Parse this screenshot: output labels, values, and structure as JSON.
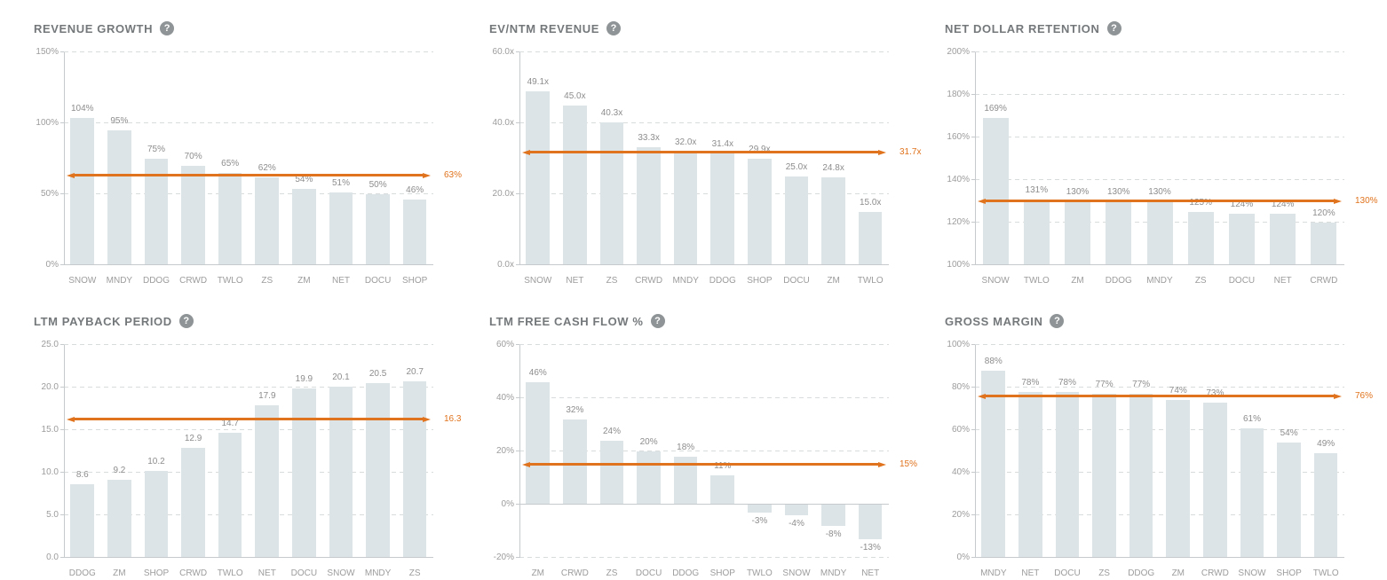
{
  "ui": {
    "help_glyph": "?",
    "colors": {
      "bar": "#dde4e8",
      "avg_line": "#e0731d",
      "title": "#74787a",
      "tick_label": "#9c9c9c",
      "bar_label": "#8d8d8d",
      "grid": "#d9dcdd",
      "axis": "#c6cacc",
      "help_bg": "#8f9496"
    }
  },
  "chart_data": [
    {
      "type": "bar",
      "title": "REVENUE GROWTH",
      "categories": [
        "SNOW",
        "MNDY",
        "DDOG",
        "CRWD",
        "TWLO",
        "ZS",
        "ZM",
        "NET",
        "DOCU",
        "SHOP"
      ],
      "values": [
        104,
        95,
        75,
        70,
        65,
        62,
        54,
        51,
        50,
        46
      ],
      "value_labels": [
        "104%",
        "95%",
        "75%",
        "70%",
        "65%",
        "62%",
        "54%",
        "51%",
        "50%",
        "46%"
      ],
      "average_line": {
        "value": 63,
        "label": "63%"
      },
      "ylim": [
        0,
        150
      ],
      "yticks": [
        {
          "value": 0,
          "label": "0%"
        },
        {
          "value": 50,
          "label": "50%"
        },
        {
          "value": 100,
          "label": "100%"
        },
        {
          "value": 150,
          "label": "150%"
        }
      ],
      "grid": "dashed-horizontal",
      "legend": "none"
    },
    {
      "type": "bar",
      "title": "EV/NTM REVENUE",
      "categories": [
        "SNOW",
        "NET",
        "ZS",
        "CRWD",
        "MNDY",
        "DDOG",
        "SHOP",
        "DOCU",
        "ZM",
        "TWLO"
      ],
      "values": [
        49.1,
        45.0,
        40.3,
        33.3,
        32.0,
        31.4,
        29.9,
        25.0,
        24.8,
        15.0
      ],
      "value_labels": [
        "49.1x",
        "45.0x",
        "40.3x",
        "33.3x",
        "32.0x",
        "31.4x",
        "29.9x",
        "25.0x",
        "24.8x",
        "15.0x"
      ],
      "average_line": {
        "value": 31.7,
        "label": "31.7x"
      },
      "ylim": [
        0,
        60
      ],
      "yticks": [
        {
          "value": 0,
          "label": "0.0x"
        },
        {
          "value": 20,
          "label": "20.0x"
        },
        {
          "value": 40,
          "label": "40.0x"
        },
        {
          "value": 60,
          "label": "60.0x"
        }
      ],
      "grid": "dashed-horizontal",
      "legend": "none"
    },
    {
      "type": "bar",
      "title": "NET DOLLAR RETENTION",
      "categories": [
        "SNOW",
        "TWLO",
        "ZM",
        "DDOG",
        "MNDY",
        "ZS",
        "DOCU",
        "NET",
        "CRWD"
      ],
      "values": [
        169,
        131,
        130,
        130,
        130,
        125,
        124,
        124,
        120
      ],
      "value_labels": [
        "169%",
        "131%",
        "130%",
        "130%",
        "130%",
        "125%",
        "124%",
        "124%",
        "120%"
      ],
      "average_line": {
        "value": 130,
        "label": "130%"
      },
      "ylim": [
        100,
        200
      ],
      "yticks": [
        {
          "value": 100,
          "label": "100%"
        },
        {
          "value": 120,
          "label": "120%"
        },
        {
          "value": 140,
          "label": "140%"
        },
        {
          "value": 160,
          "label": "160%"
        },
        {
          "value": 180,
          "label": "180%"
        },
        {
          "value": 200,
          "label": "200%"
        }
      ],
      "grid": "dashed-horizontal",
      "legend": "none"
    },
    {
      "type": "bar",
      "title": "LTM PAYBACK PERIOD",
      "categories": [
        "DDOG",
        "ZM",
        "SHOP",
        "CRWD",
        "TWLO",
        "NET",
        "DOCU",
        "SNOW",
        "MNDY",
        "ZS"
      ],
      "values": [
        8.6,
        9.2,
        10.2,
        12.9,
        14.7,
        17.9,
        19.9,
        20.1,
        20.5,
        20.7
      ],
      "value_labels": [
        "8.6",
        "9.2",
        "10.2",
        "12.9",
        "14.7",
        "17.9",
        "19.9",
        "20.1",
        "20.5",
        "20.7"
      ],
      "average_line": {
        "value": 16.3,
        "label": "16.3"
      },
      "ylim": [
        0,
        25
      ],
      "yticks": [
        {
          "value": 0,
          "label": "0.0"
        },
        {
          "value": 5,
          "label": "5.0"
        },
        {
          "value": 10,
          "label": "10.0"
        },
        {
          "value": 15,
          "label": "15.0"
        },
        {
          "value": 20,
          "label": "20.0"
        },
        {
          "value": 25,
          "label": "25.0"
        }
      ],
      "grid": "dashed-horizontal",
      "legend": "none"
    },
    {
      "type": "bar",
      "title": "LTM FREE CASH FLOW %",
      "categories": [
        "ZM",
        "CRWD",
        "ZS",
        "DOCU",
        "DDOG",
        "SHOP",
        "TWLO",
        "SNOW",
        "MNDY",
        "NET"
      ],
      "values": [
        46,
        32,
        24,
        20,
        18,
        11,
        -3,
        -4,
        -8,
        -13
      ],
      "value_labels": [
        "46%",
        "32%",
        "24%",
        "20%",
        "18%",
        "11%",
        "-3%",
        "-4%",
        "-8%",
        "-13%"
      ],
      "average_line": {
        "value": 15,
        "label": "15%"
      },
      "ylim": [
        -20,
        60
      ],
      "yticks": [
        {
          "value": -20,
          "label": "-20%"
        },
        {
          "value": 0,
          "label": "0%"
        },
        {
          "value": 20,
          "label": "20%"
        },
        {
          "value": 40,
          "label": "40%"
        },
        {
          "value": 60,
          "label": "60%"
        }
      ],
      "grid": "dashed-horizontal",
      "legend": "none"
    },
    {
      "type": "bar",
      "title": "GROSS MARGIN",
      "categories": [
        "MNDY",
        "NET",
        "DOCU",
        "ZS",
        "DDOG",
        "ZM",
        "CRWD",
        "SNOW",
        "SHOP",
        "TWLO"
      ],
      "values": [
        88,
        78,
        78,
        77,
        77,
        74,
        73,
        61,
        54,
        49
      ],
      "value_labels": [
        "88%",
        "78%",
        "78%",
        "77%",
        "77%",
        "74%",
        "73%",
        "61%",
        "54%",
        "49%"
      ],
      "average_line": {
        "value": 76,
        "label": "76%"
      },
      "ylim": [
        0,
        100
      ],
      "yticks": [
        {
          "value": 0,
          "label": "0%"
        },
        {
          "value": 20,
          "label": "20%"
        },
        {
          "value": 40,
          "label": "40%"
        },
        {
          "value": 60,
          "label": "60%"
        },
        {
          "value": 80,
          "label": "80%"
        },
        {
          "value": 100,
          "label": "100%"
        }
      ],
      "grid": "dashed-horizontal",
      "legend": "none"
    }
  ]
}
